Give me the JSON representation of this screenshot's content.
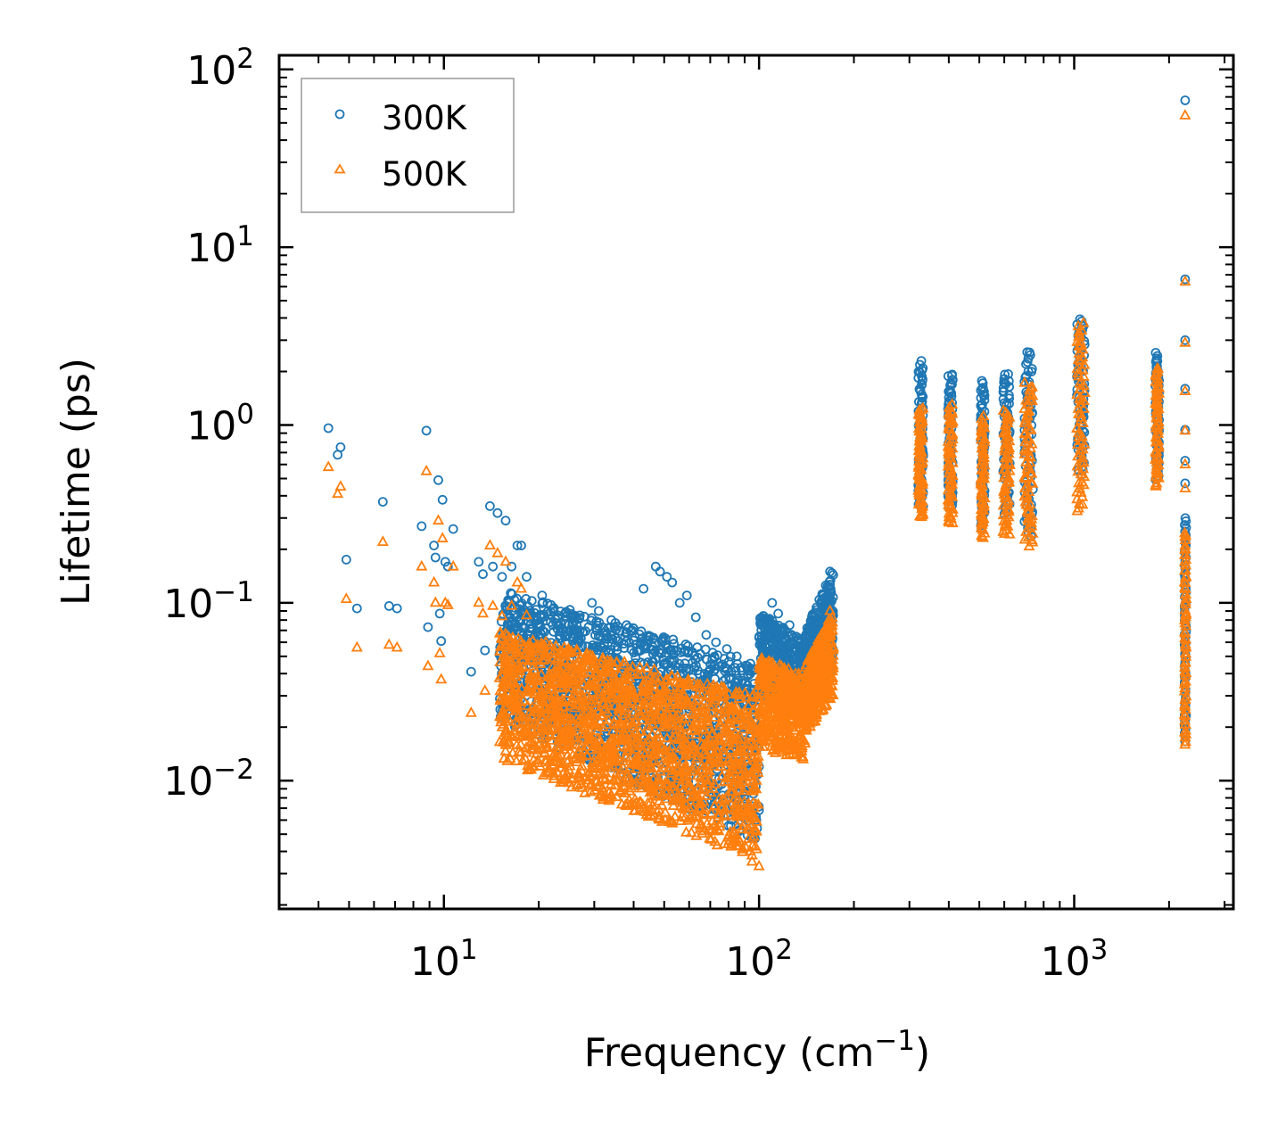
{
  "chart_data": {
    "type": "scatter",
    "xscale": "log",
    "yscale": "log",
    "xlabel": "Frequency (cm",
    "xlabel_sup": "−1",
    "xlabel_close": ")",
    "ylabel": "Lifetime (ps)",
    "xlim": [
      3,
      3200
    ],
    "ylim": [
      0.0019,
      120
    ],
    "xticks": [
      {
        "value": 10,
        "base": "10",
        "exp": "1"
      },
      {
        "value": 100,
        "base": "10",
        "exp": "2"
      },
      {
        "value": 1000,
        "base": "10",
        "exp": "3"
      }
    ],
    "yticks": [
      {
        "value": 0.01,
        "base": "10",
        "exp": "−2"
      },
      {
        "value": 0.1,
        "base": "10",
        "exp": "−1"
      },
      {
        "value": 1,
        "base": "10",
        "exp": "0"
      },
      {
        "value": 10,
        "base": "10",
        "exp": "1"
      },
      {
        "value": 100,
        "base": "10",
        "exp": "2"
      }
    ],
    "legend_position": "top-left",
    "series": [
      {
        "name": "300K",
        "marker": "circle",
        "color": "#1f77b4",
        "points": [
          [
            4.3,
            0.96
          ],
          [
            4.6,
            0.68
          ],
          [
            4.7,
            0.75
          ],
          [
            4.9,
            0.175
          ],
          [
            5.3,
            0.093
          ],
          [
            6.4,
            0.37
          ],
          [
            6.7,
            0.096
          ],
          [
            7.1,
            0.093
          ],
          [
            8.5,
            0.27
          ],
          [
            8.8,
            0.93
          ],
          [
            8.9,
            0.073
          ],
          [
            9.3,
            0.21
          ],
          [
            9.4,
            0.18
          ],
          [
            9.6,
            0.49
          ],
          [
            9.7,
            0.087
          ],
          [
            9.8,
            0.061
          ],
          [
            9.9,
            0.38
          ],
          [
            10.1,
            0.17
          ],
          [
            10.3,
            0.16
          ],
          [
            10.7,
            0.26
          ],
          [
            12.2,
            0.041
          ],
          [
            12.9,
            0.17
          ],
          [
            13.3,
            0.145
          ],
          [
            13.5,
            0.054
          ],
          [
            14.0,
            0.35
          ],
          [
            14.3,
            0.16
          ],
          [
            14.8,
            0.32
          ],
          [
            15.3,
            0.14
          ],
          [
            15.7,
            0.29
          ],
          [
            16.4,
            0.16
          ],
          [
            17.1,
            0.21
          ],
          [
            17.6,
            0.21
          ],
          [
            18.3,
            0.14
          ],
          [
            19.0,
            0.025
          ],
          [
            20.5,
            0.11
          ],
          [
            21.8,
            0.089
          ],
          [
            23.0,
            0.085
          ],
          [
            25.4,
            0.082
          ],
          [
            27.0,
            0.085
          ],
          [
            29.5,
            0.1
          ],
          [
            31.0,
            0.09
          ],
          [
            34.0,
            0.08
          ],
          [
            38.0,
            0.075
          ],
          [
            43.0,
            0.12
          ],
          [
            47.0,
            0.16
          ],
          [
            48.5,
            0.15
          ],
          [
            51.0,
            0.14
          ],
          [
            53.0,
            0.13
          ],
          [
            56.0,
            0.1
          ],
          [
            59.0,
            0.11
          ],
          [
            63.0,
            0.083
          ],
          [
            68.0,
            0.066
          ],
          [
            73.0,
            0.06
          ],
          [
            79.0,
            0.055
          ],
          [
            85.0,
            0.05
          ],
          [
            92.0,
            0.044
          ],
          [
            97.0,
            0.042
          ],
          [
            100.0,
            0.012
          ],
          [
            110.0,
            0.1
          ],
          [
            115.0,
            0.087
          ],
          [
            125.0,
            0.075
          ],
          [
            135.0,
            0.045
          ],
          [
            150.0,
            0.084
          ],
          [
            160.0,
            0.11
          ],
          [
            168.0,
            0.15
          ],
          [
            2250.0,
            67.0
          ],
          [
            2250.0,
            6.6
          ],
          [
            2250.0,
            3.0
          ],
          [
            2250.0,
            1.6
          ],
          [
            2250.0,
            0.94
          ],
          [
            2250.0,
            0.63
          ],
          [
            2250.0,
            0.47
          ]
        ],
        "bands": [
          {
            "x": [
              320,
              332
            ],
            "ymin": 0.34,
            "ymax": 2.25
          },
          {
            "x": [
              398,
              412
            ],
            "ymin": 0.35,
            "ymax": 1.95
          },
          {
            "x": [
              505,
              520
            ],
            "ymin": 0.26,
            "ymax": 1.75
          },
          {
            "x": [
              595,
              625
            ],
            "ymin": 0.32,
            "ymax": 1.95
          },
          {
            "x": [
              695,
              740
            ],
            "ymin": 0.24,
            "ymax": 2.6
          },
          {
            "x": [
              1020,
              1080
            ],
            "ymin": 0.52,
            "ymax": 4.0
          },
          {
            "x": [
              1810,
              1860
            ],
            "ymin": 0.5,
            "ymax": 2.5
          },
          {
            "x": [
              2240,
              2265
            ],
            "ymin": 0.017,
            "ymax": 0.3
          }
        ],
        "clouds": [
          {
            "x": [
              15,
              100
            ],
            "ymin_at_start": 0.022,
            "ymin_at_end": 0.0045,
            "ymax_at_start": 0.12,
            "ymax_at_end": 0.045,
            "count": 1500
          },
          {
            "x": [
              100,
              140
            ],
            "ymin_at_start": 0.03,
            "ymin_at_end": 0.02,
            "ymax_at_start": 0.09,
            "ymax_at_end": 0.06,
            "count": 400
          },
          {
            "x": [
              140,
              172
            ],
            "ymin_at_start": 0.025,
            "ymin_at_end": 0.04,
            "ymax_at_start": 0.07,
            "ymax_at_end": 0.155,
            "count": 350
          }
        ]
      },
      {
        "name": "500K",
        "marker": "triangle",
        "color": "#ff7f0e",
        "points": [
          [
            4.3,
            0.58
          ],
          [
            4.6,
            0.41
          ],
          [
            4.7,
            0.45
          ],
          [
            4.9,
            0.105
          ],
          [
            5.3,
            0.056
          ],
          [
            6.4,
            0.22
          ],
          [
            6.7,
            0.058
          ],
          [
            7.1,
            0.056
          ],
          [
            8.5,
            0.16
          ],
          [
            8.8,
            0.55
          ],
          [
            8.9,
            0.044
          ],
          [
            9.3,
            0.13
          ],
          [
            9.4,
            0.1
          ],
          [
            9.6,
            0.29
          ],
          [
            9.7,
            0.052
          ],
          [
            9.8,
            0.037
          ],
          [
            9.9,
            0.23
          ],
          [
            10.1,
            0.1
          ],
          [
            10.3,
            0.097
          ],
          [
            10.7,
            0.16
          ],
          [
            12.2,
            0.024
          ],
          [
            12.9,
            0.1
          ],
          [
            13.3,
            0.087
          ],
          [
            13.5,
            0.032
          ],
          [
            14.0,
            0.21
          ],
          [
            14.3,
            0.096
          ],
          [
            14.8,
            0.19
          ],
          [
            15.3,
            0.084
          ],
          [
            15.7,
            0.17
          ],
          [
            16.4,
            0.096
          ],
          [
            17.1,
            0.13
          ],
          [
            17.6,
            0.12
          ],
          [
            18.3,
            0.085
          ],
          [
            19.0,
            0.015
          ],
          [
            21.0,
            0.013
          ],
          [
            23.0,
            0.011
          ],
          [
            25.0,
            0.0097
          ],
          [
            28.0,
            0.0085
          ],
          [
            32.0,
            0.0078
          ],
          [
            38.0,
            0.0072
          ],
          [
            45.0,
            0.0068
          ],
          [
            52.0,
            0.006
          ],
          [
            58.0,
            0.0075
          ],
          [
            64.0,
            0.0082
          ],
          [
            75.0,
            0.0055
          ],
          [
            85.0,
            0.0045
          ],
          [
            95.0,
            0.0035
          ],
          [
            100.0,
            0.0033
          ],
          [
            115.0,
            0.016
          ],
          [
            128.0,
            0.014
          ],
          [
            135.0,
            0.018
          ],
          [
            145.0,
            0.021
          ],
          [
            160.0,
            0.05
          ],
          [
            168.0,
            0.09
          ],
          [
            2250.0,
            55.0
          ],
          [
            2250.0,
            6.4
          ],
          [
            2250.0,
            2.9
          ],
          [
            2250.0,
            1.55
          ],
          [
            2250.0,
            0.93
          ],
          [
            2250.0,
            0.6
          ],
          [
            2250.0,
            0.44
          ]
        ],
        "bands": [
          {
            "x": [
              320,
              332
            ],
            "ymin": 0.3,
            "ymax": 1.25
          },
          {
            "x": [
              398,
              412
            ],
            "ymin": 0.28,
            "ymax": 1.3
          },
          {
            "x": [
              505,
              520
            ],
            "ymin": 0.23,
            "ymax": 1.1
          },
          {
            "x": [
              595,
              625
            ],
            "ymin": 0.24,
            "ymax": 1.2
          },
          {
            "x": [
              695,
              740
            ],
            "ymin": 0.21,
            "ymax": 1.7
          },
          {
            "x": [
              1020,
              1080
            ],
            "ymin": 0.33,
            "ymax": 3.7
          },
          {
            "x": [
              1810,
              1860
            ],
            "ymin": 0.45,
            "ymax": 2.1
          },
          {
            "x": [
              2240,
              2265
            ],
            "ymin": 0.016,
            "ymax": 0.25
          }
        ],
        "clouds": [
          {
            "x": [
              15,
              100
            ],
            "ymin_at_start": 0.013,
            "ymin_at_end": 0.0035,
            "ymax_at_start": 0.07,
            "ymax_at_end": 0.03,
            "count": 1700
          },
          {
            "x": [
              100,
              140
            ],
            "ymin_at_start": 0.015,
            "ymin_at_end": 0.013,
            "ymax_at_start": 0.05,
            "ymax_at_end": 0.04,
            "count": 400
          },
          {
            "x": [
              140,
              172
            ],
            "ymin_at_start": 0.018,
            "ymin_at_end": 0.03,
            "ymax_at_start": 0.045,
            "ymax_at_end": 0.09,
            "count": 350
          }
        ]
      }
    ]
  }
}
